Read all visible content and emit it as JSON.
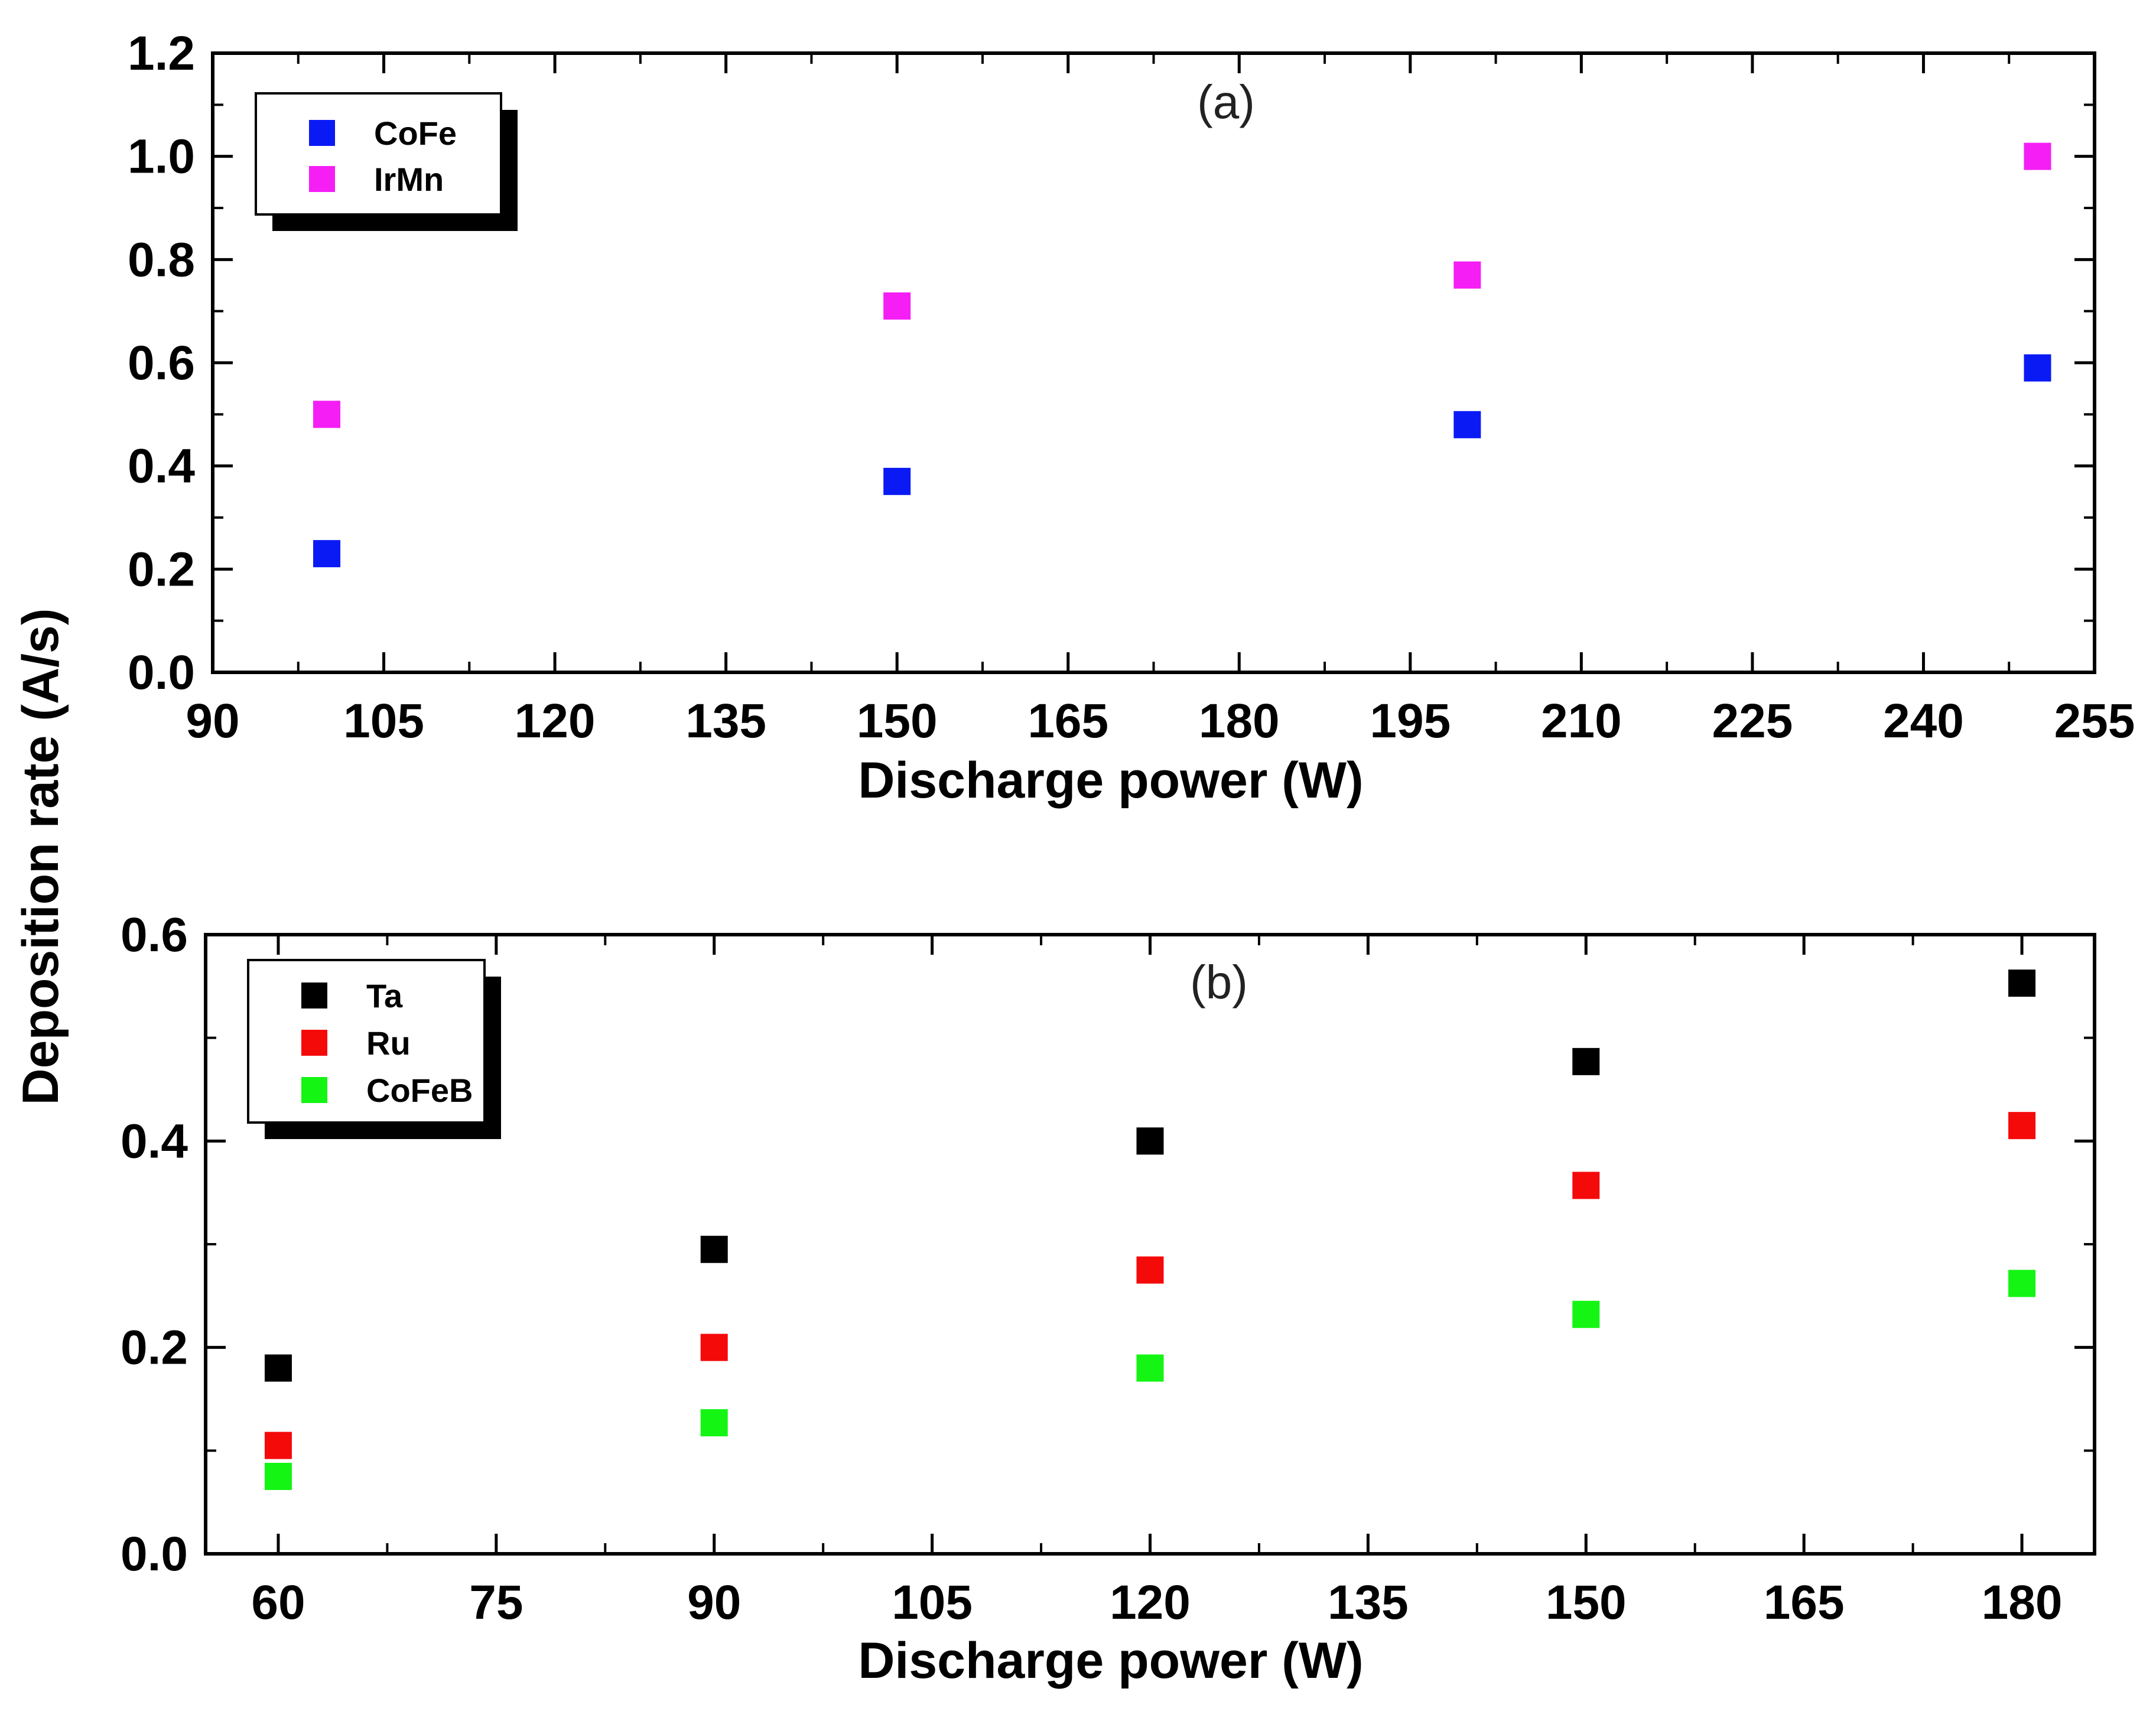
{
  "y_axis_title": "Deposition rate (A/s)",
  "chart_data": [
    {
      "type": "scatter",
      "panel_label": "(a)",
      "xlabel": "Discharge power (W)",
      "ylabel": "Deposition rate (A/s)",
      "xlim": [
        90,
        255
      ],
      "ylim": [
        0,
        1.2
      ],
      "xticks": [
        90,
        105,
        120,
        135,
        150,
        165,
        180,
        195,
        210,
        225,
        240,
        255
      ],
      "yticks": [
        "0.0",
        "0.2",
        "0.4",
        "0.6",
        "0.8",
        "1.0",
        "1.2"
      ],
      "legend_position": "top-left",
      "series": [
        {
          "name": "CoFe",
          "color": "#0a1af5",
          "x": [
            100,
            150,
            200,
            250
          ],
          "y": [
            0.23,
            0.37,
            0.48,
            0.59
          ]
        },
        {
          "name": "IrMn",
          "color": "#f51ef5",
          "x": [
            100,
            150,
            200,
            250
          ],
          "y": [
            0.5,
            0.71,
            0.77,
            1.0
          ]
        }
      ]
    },
    {
      "type": "scatter",
      "panel_label": "(b)",
      "xlabel": "Discharge power (W)",
      "ylabel": "Deposition rate (A/s)",
      "xlim": [
        55,
        185
      ],
      "ylim": [
        0,
        0.6
      ],
      "xticks": [
        60,
        75,
        90,
        105,
        120,
        135,
        150,
        165,
        180
      ],
      "yticks": [
        "0.0",
        "0.2",
        "0.4",
        "0.6"
      ],
      "legend_position": "top-left",
      "series": [
        {
          "name": "Ta",
          "color": "#000000",
          "x": [
            60,
            90,
            120,
            150,
            180
          ],
          "y": [
            0.18,
            0.295,
            0.4,
            0.477,
            0.553
          ]
        },
        {
          "name": "Ru",
          "color": "#f50a0a",
          "x": [
            60,
            90,
            120,
            150,
            180
          ],
          "y": [
            0.105,
            0.2,
            0.275,
            0.357,
            0.415
          ]
        },
        {
          "name": "CoFeB",
          "color": "#14f514",
          "x": [
            60,
            90,
            120,
            150,
            180
          ],
          "y": [
            0.075,
            0.127,
            0.18,
            0.232,
            0.262
          ]
        }
      ]
    }
  ]
}
